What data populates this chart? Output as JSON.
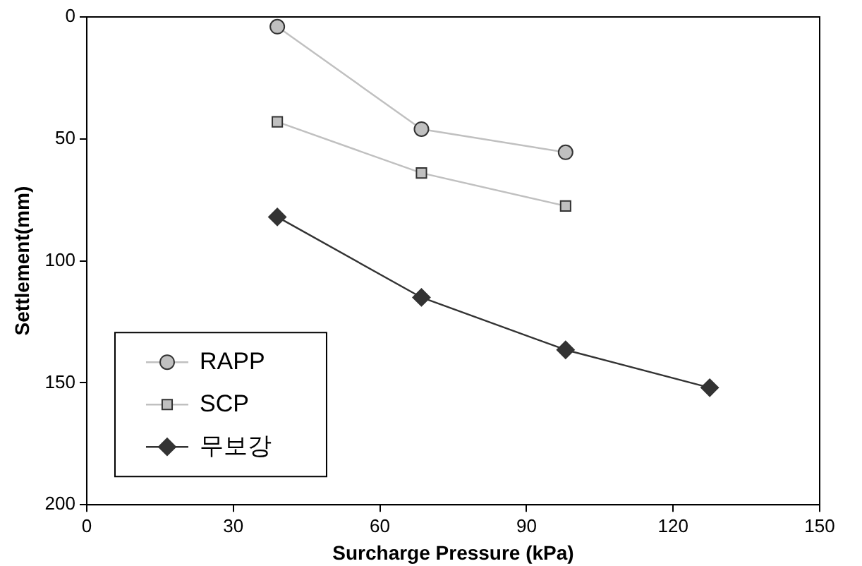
{
  "chart_data": {
    "type": "line",
    "xlabel": "Surcharge Pressure (kPa)",
    "ylabel": "Settlement(mm)",
    "xlim": [
      0,
      150
    ],
    "xticks": [
      0,
      30,
      60,
      90,
      120,
      150
    ],
    "ylim": [
      200,
      0
    ],
    "yticks": [
      0,
      50,
      100,
      150,
      200
    ],
    "grid": false,
    "legend": "bottom left",
    "series": [
      {
        "name": "RAPP",
        "color": "#c0c0c0",
        "marker": "circle",
        "x": [
          39,
          68.5,
          98
        ],
        "values": [
          4,
          46,
          55.5
        ]
      },
      {
        "name": "SCP",
        "color": "#c0c0c0",
        "marker": "square",
        "x": [
          39,
          68.5,
          98
        ],
        "values": [
          43,
          64,
          77.5
        ]
      },
      {
        "name": "무보강",
        "color": "#333333",
        "marker": "diamond",
        "x": [
          39,
          68.5,
          98,
          127.5
        ],
        "values": [
          82,
          115,
          136.5,
          152
        ]
      }
    ]
  }
}
